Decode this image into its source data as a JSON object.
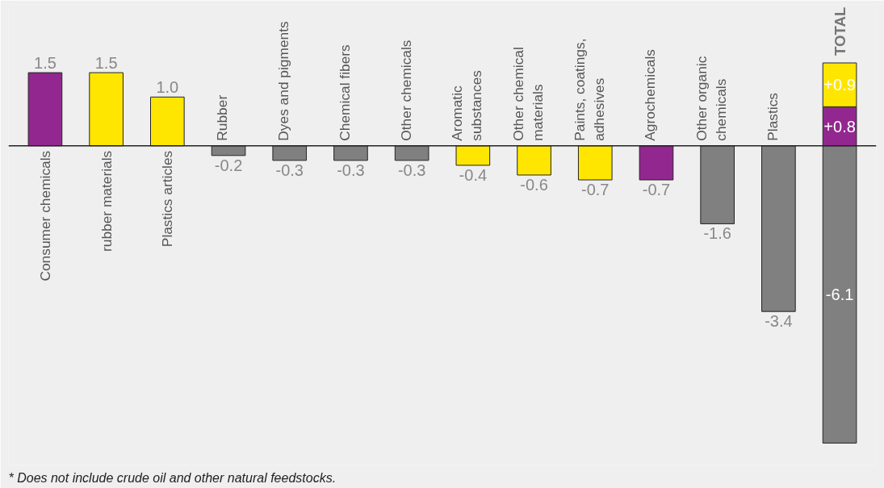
{
  "chart_data": {
    "type": "bar",
    "stacked": true,
    "categories": [
      "Consumer chemicals",
      "rubber materials",
      "Plastics articles",
      "Rubber",
      "Dyes and pigments",
      "Chemical fibers",
      "Other chemicals",
      "Aromatic substances",
      "Other chemical materials",
      "Paints, coatings, adhesives",
      "Agrochemicals",
      "Other organic chemicals",
      "Plastics",
      "TOTAL"
    ],
    "series": [
      {
        "color": "#92278f",
        "values": [
          1.5,
          null,
          null,
          null,
          null,
          null,
          null,
          null,
          null,
          null,
          -0.7,
          null,
          null,
          0.8
        ],
        "value_labels": [
          "1.5",
          null,
          null,
          null,
          null,
          null,
          null,
          null,
          null,
          null,
          "-0.7",
          null,
          null,
          "+0.8"
        ]
      },
      {
        "color": "#ffe600",
        "values": [
          null,
          1.5,
          1.0,
          null,
          null,
          null,
          null,
          -0.4,
          -0.6,
          -0.7,
          null,
          null,
          null,
          0.9
        ],
        "value_labels": [
          null,
          "1.5",
          "1.0",
          null,
          null,
          null,
          null,
          "-0.4",
          "-0.6",
          "-0.7",
          null,
          null,
          null,
          "+0.9"
        ]
      },
      {
        "color": "#808080",
        "values": [
          null,
          null,
          null,
          -0.2,
          -0.3,
          -0.3,
          -0.3,
          null,
          null,
          null,
          null,
          -1.6,
          -3.4,
          -6.1
        ],
        "value_labels": [
          null,
          null,
          null,
          "-0.2",
          "-0.3",
          "-0.3",
          "-0.3",
          null,
          null,
          null,
          null,
          "-1.6",
          "-3.4",
          "-6.1"
        ]
      }
    ],
    "grid": false,
    "annotations": [
      "* Does not include crude oil and other natural feedstocks."
    ]
  }
}
